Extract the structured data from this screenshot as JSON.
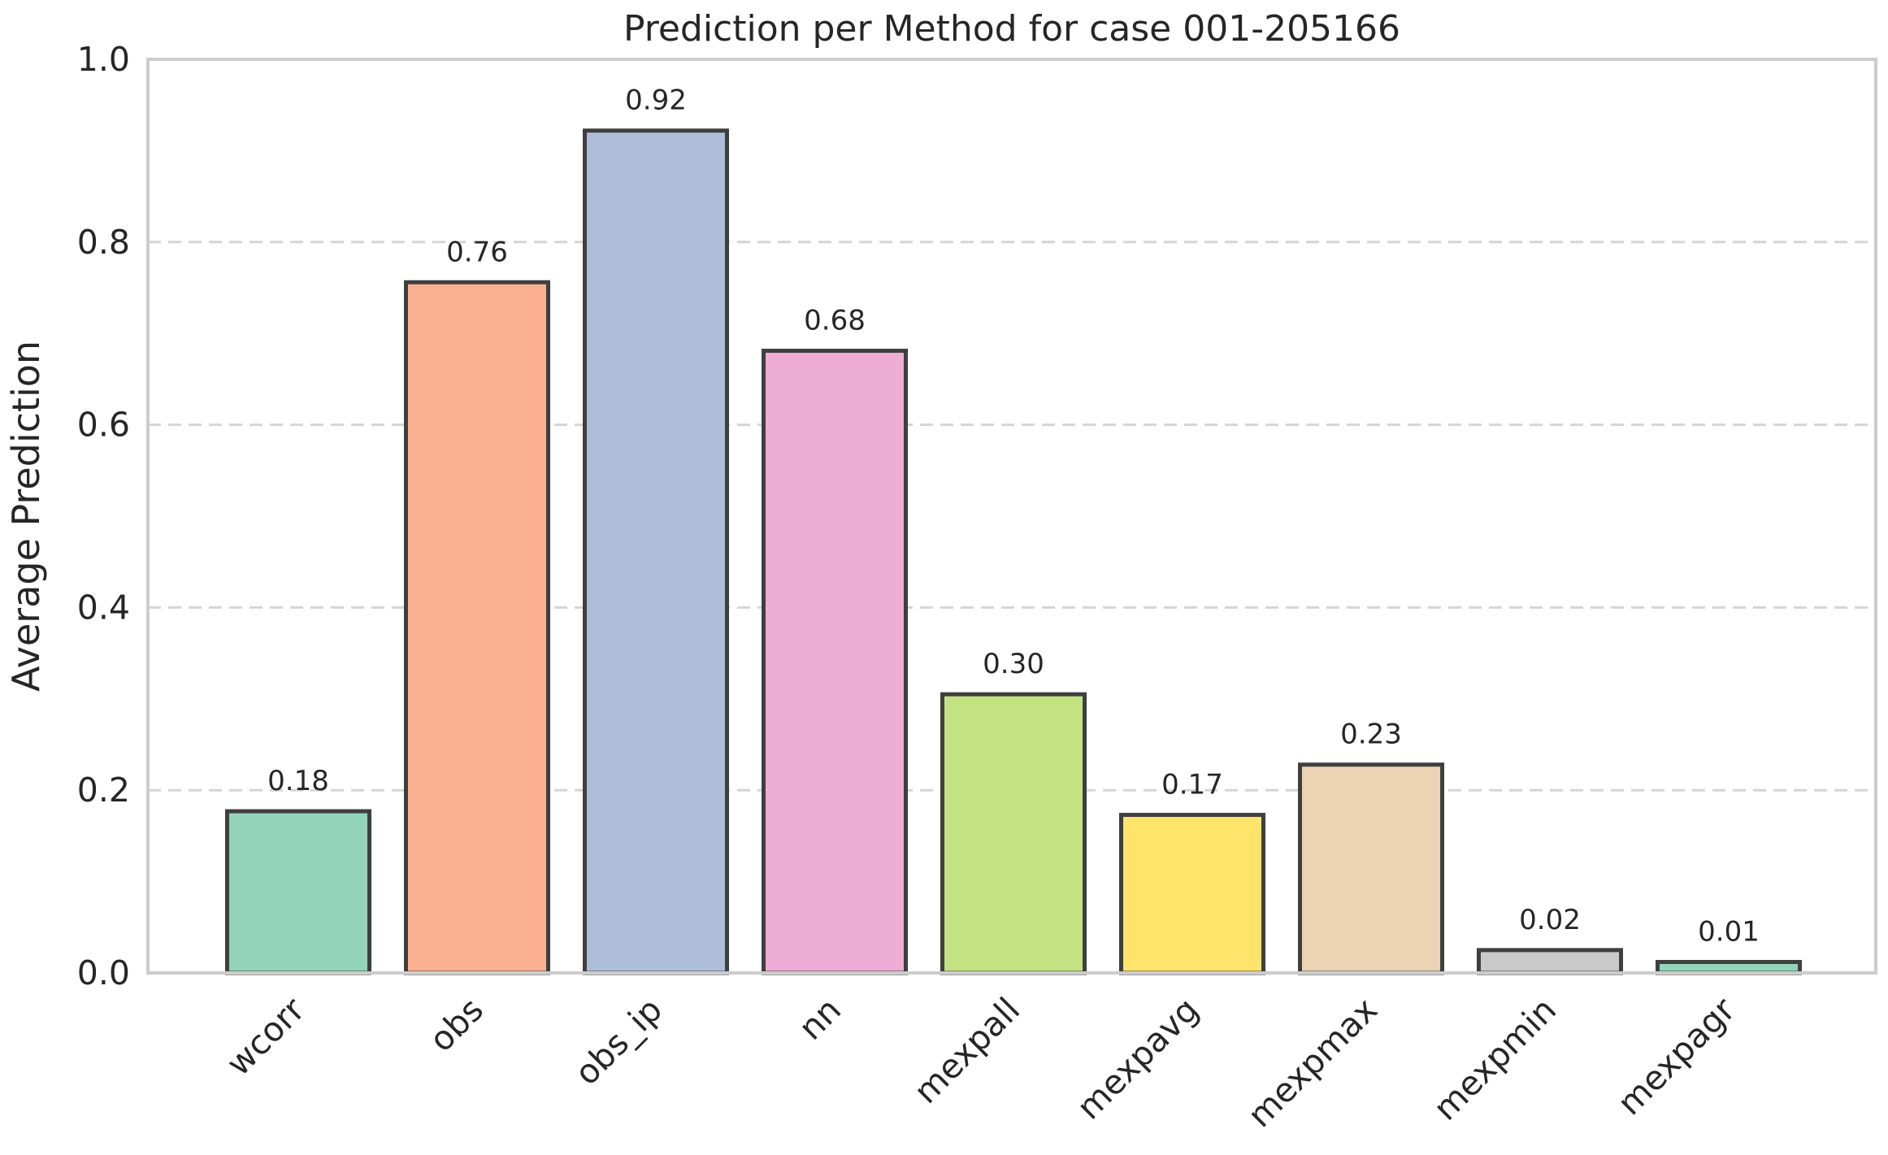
{
  "chart_data": {
    "type": "bar",
    "title": "Prediction per Method for case 001-205166",
    "xlabel": "",
    "ylabel": "Average Prediction",
    "ylim": [
      0,
      1.0
    ],
    "yticks": [
      "0.0",
      "0.2",
      "0.4",
      "0.6",
      "0.8",
      "1.0"
    ],
    "grid": "horizontal dashed",
    "categories": [
      "wcorr",
      "obs",
      "obs_ip",
      "nn",
      "mexpall",
      "mexpavg",
      "mexpmax",
      "mexpmin",
      "mexpagr"
    ],
    "values": [
      0.177,
      0.756,
      0.922,
      0.681,
      0.305,
      0.173,
      0.228,
      0.025,
      0.012
    ],
    "value_labels": [
      "0.18",
      "0.76",
      "0.92",
      "0.68",
      "0.30",
      "0.17",
      "0.23",
      "0.02",
      "0.01"
    ],
    "colors": [
      "#93d3bc",
      "#fbaf91",
      "#afbdda",
      "#eeadd4",
      "#c3e383",
      "#ffe46c",
      "#ebd3b3",
      "#c9c9c9",
      "#93d3bc"
    ]
  }
}
